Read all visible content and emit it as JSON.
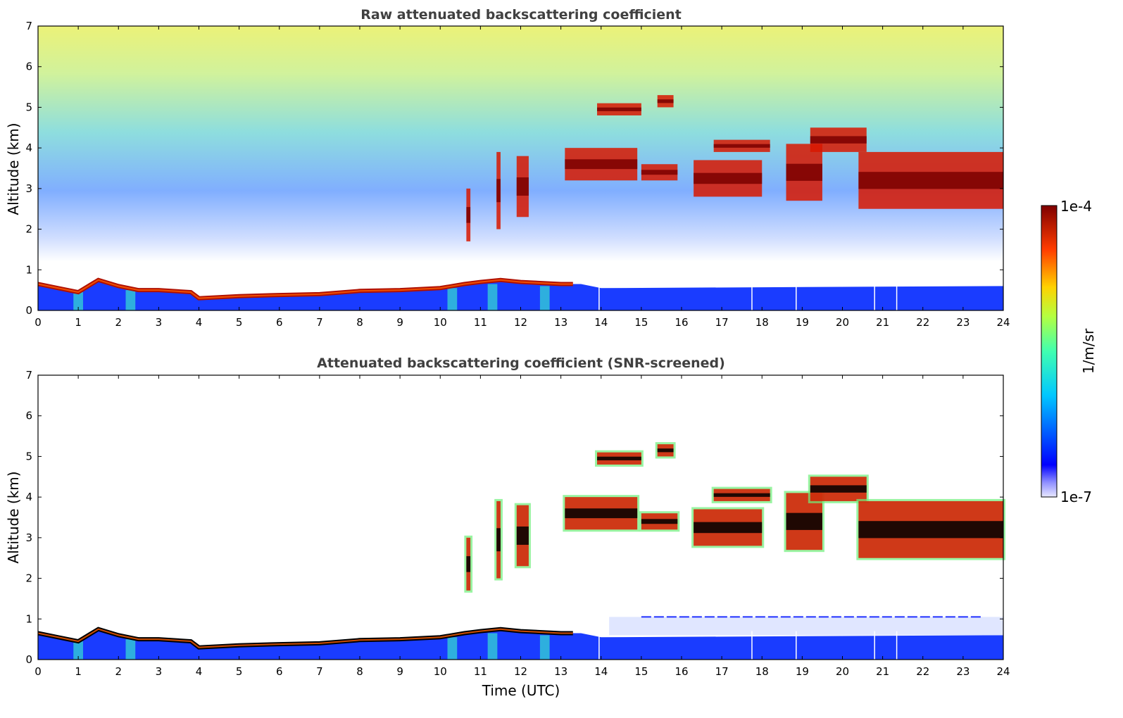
{
  "chart_data": [
    {
      "type": "heatmap",
      "title": "Raw attenuated backscattering coefficient",
      "xlabel": "",
      "ylabel": "Altitude (km)",
      "xlim": [
        0,
        24
      ],
      "ylim": [
        0,
        7
      ],
      "x_ticks": [
        "0",
        "1",
        "2",
        "3",
        "4",
        "5",
        "6",
        "7",
        "8",
        "9",
        "10",
        "11",
        "12",
        "13",
        "14",
        "15",
        "16",
        "17",
        "18",
        "19",
        "20",
        "21",
        "22",
        "23",
        "24"
      ],
      "y_ticks": [
        "0",
        "1",
        "2",
        "3",
        "4",
        "5",
        "6",
        "7"
      ],
      "features": {
        "boundary_layer": [
          [
            0,
            0.65
          ],
          [
            0.5,
            0.55
          ],
          [
            1,
            0.45
          ],
          [
            1.5,
            0.75
          ],
          [
            2,
            0.6
          ],
          [
            2.5,
            0.5
          ],
          [
            3,
            0.5
          ],
          [
            3.8,
            0.45
          ],
          [
            4,
            0.3
          ],
          [
            5,
            0.35
          ],
          [
            6,
            0.38
          ],
          [
            7,
            0.4
          ],
          [
            8,
            0.48
          ],
          [
            9,
            0.5
          ],
          [
            10,
            0.55
          ],
          [
            10.6,
            0.65
          ],
          [
            11,
            0.7
          ],
          [
            11.5,
            0.75
          ],
          [
            12,
            0.7
          ],
          [
            13,
            0.65
          ],
          [
            13.3,
            0.65
          ]
        ],
        "clouds": [
          {
            "t0": 10.65,
            "t1": 10.75,
            "z0": 1.7,
            "z1": 3.0
          },
          {
            "t0": 11.4,
            "t1": 11.5,
            "z0": 2.0,
            "z1": 3.9
          },
          {
            "t0": 11.9,
            "t1": 12.2,
            "z0": 2.3,
            "z1": 3.8
          },
          {
            "t0": 13.1,
            "t1": 14.9,
            "z0": 3.2,
            "z1": 4.0
          },
          {
            "t0": 13.9,
            "t1": 15.0,
            "z0": 4.8,
            "z1": 5.1
          },
          {
            "t0": 15.4,
            "t1": 15.8,
            "z0": 5.0,
            "z1": 5.3
          },
          {
            "t0": 15.0,
            "t1": 15.9,
            "z0": 3.2,
            "z1": 3.6
          },
          {
            "t0": 16.3,
            "t1": 18.0,
            "z0": 2.8,
            "z1": 3.7
          },
          {
            "t0": 16.8,
            "t1": 18.2,
            "z0": 3.9,
            "z1": 4.2
          },
          {
            "t0": 18.6,
            "t1": 19.5,
            "z0": 2.7,
            "z1": 4.1
          },
          {
            "t0": 19.2,
            "t1": 20.6,
            "z0": 3.9,
            "z1": 4.5
          },
          {
            "t0": 20.4,
            "t1": 24.0,
            "z0": 2.5,
            "z1": 3.9
          }
        ],
        "dropout_times": [
          13.95,
          17.75,
          18.85,
          20.8,
          21.35
        ]
      }
    },
    {
      "type": "heatmap",
      "title": "Attenuated backscattering coefficient (SNR-screened)",
      "xlabel": "Time (UTC)",
      "ylabel": "Altitude (km)",
      "xlim": [
        0,
        24
      ],
      "ylim": [
        0,
        7
      ],
      "x_ticks": [
        "0",
        "1",
        "2",
        "3",
        "4",
        "5",
        "6",
        "7",
        "8",
        "9",
        "10",
        "11",
        "12",
        "13",
        "14",
        "15",
        "16",
        "17",
        "18",
        "19",
        "20",
        "21",
        "22",
        "23",
        "24"
      ],
      "y_ticks": [
        "0",
        "1",
        "2",
        "3",
        "4",
        "5",
        "6",
        "7"
      ]
    }
  ],
  "colorbar": {
    "label": "1/m/sr",
    "min_label": "1e-7",
    "max_label": "1e-4",
    "colormap": "jet"
  }
}
